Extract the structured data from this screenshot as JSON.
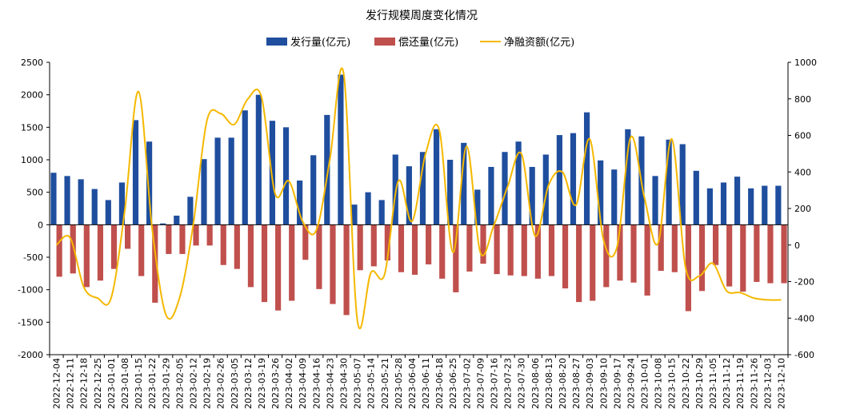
{
  "chart_data": {
    "type": "bar",
    "title": "发行规模周度变化情况",
    "legend": {
      "position": "top",
      "entries": [
        {
          "key": "issuance",
          "label": "发行量(亿元)",
          "color": "#1f4e9e",
          "kind": "bar"
        },
        {
          "key": "repayment",
          "label": "偿还量(亿元)",
          "color": "#c0504d",
          "kind": "bar"
        },
        {
          "key": "net",
          "label": "净融资额(亿元)",
          "color": "#f5b800",
          "kind": "line"
        }
      ]
    },
    "y_left": {
      "min": -2000,
      "max": 2500,
      "step": 500,
      "ticks": [
        "2500",
        "2000",
        "1500",
        "1000",
        "500",
        "0",
        "-500",
        "-1000",
        "-1500",
        "-2000"
      ]
    },
    "y_right": {
      "min": -600,
      "max": 1000,
      "step": 200,
      "ticks": [
        "1000",
        "800",
        "600",
        "400",
        "200",
        "0",
        "-200",
        "-400",
        "-600"
      ]
    },
    "grid": false,
    "categories": [
      "2022-12-04",
      "2022-12-11",
      "2022-12-18",
      "2022-12-25",
      "2023-01-01",
      "2023-01-08",
      "2023-01-15",
      "2023-01-22",
      "2023-01-29",
      "2023-02-05",
      "2023-02-12",
      "2023-02-19",
      "2023-02-26",
      "2023-03-05",
      "2023-03-12",
      "2023-03-19",
      "2023-03-26",
      "2023-04-02",
      "2023-04-09",
      "2023-04-16",
      "2023-04-23",
      "2023-04-30",
      "2023-05-07",
      "2023-05-14",
      "2023-05-21",
      "2023-05-28",
      "2023-06-04",
      "2023-06-11",
      "2023-06-18",
      "2023-06-25",
      "2023-07-02",
      "2023-07-09",
      "2023-07-16",
      "2023-07-23",
      "2023-07-30",
      "2023-08-06",
      "2023-08-13",
      "2023-08-20",
      "2023-08-27",
      "2023-09-03",
      "2023-09-10",
      "2023-09-17",
      "2023-09-24",
      "2023-10-01",
      "2023-10-08",
      "2023-10-15",
      "2023-10-22",
      "2023-10-29",
      "2023-11-05",
      "2023-11-12",
      "2023-11-19",
      "2023-11-26",
      "2023-12-03",
      "2023-12-10"
    ],
    "series": [
      {
        "name": "发行量(亿元)",
        "axis": "left",
        "values": [
          800,
          750,
          700,
          550,
          380,
          650,
          1610,
          1280,
          20,
          140,
          430,
          1010,
          1340,
          1340,
          1760,
          2000,
          1600,
          1500,
          680,
          1070,
          1690,
          2310,
          310,
          500,
          380,
          1080,
          900,
          1120,
          1470,
          1000,
          1260,
          540,
          890,
          1120,
          1280,
          890,
          1080,
          1380,
          1410,
          1730,
          990,
          850,
          1470,
          1360,
          750,
          1310,
          1240,
          830,
          560,
          650,
          740,
          560,
          600,
          600
        ],
        "color": "#1f4e9e"
      },
      {
        "name": "偿还量(亿元)",
        "axis": "left",
        "values": [
          -800,
          -750,
          -960,
          -860,
          -680,
          -370,
          -790,
          -1200,
          -450,
          -450,
          -320,
          -320,
          -620,
          -680,
          -960,
          -1190,
          -1320,
          -1170,
          -540,
          -990,
          -1220,
          -1390,
          -700,
          -640,
          -550,
          -730,
          -770,
          -610,
          -830,
          -1040,
          -720,
          -600,
          -760,
          -780,
          -790,
          -830,
          -790,
          -980,
          -1190,
          -1170,
          -960,
          -860,
          -890,
          -1090,
          -710,
          -730,
          -1330,
          -1020,
          -620,
          -950,
          -1030,
          -880,
          -900,
          -900
        ],
        "color": "#c0504d"
      },
      {
        "name": "净融资额(亿元)",
        "axis": "right",
        "values": [
          0,
          40,
          -230,
          -290,
          -290,
          190,
          840,
          90,
          -380,
          -290,
          110,
          680,
          720,
          660,
          800,
          810,
          280,
          350,
          130,
          80,
          470,
          940,
          -410,
          -150,
          -160,
          350,
          130,
          500,
          630,
          -40,
          540,
          -40,
          110,
          320,
          500,
          50,
          330,
          400,
          220,
          580,
          30,
          -10,
          590,
          260,
          10,
          580,
          -120,
          -170,
          -100,
          -250,
          -260,
          -290,
          -300,
          -300
        ],
        "color": "#f5b800"
      }
    ]
  }
}
